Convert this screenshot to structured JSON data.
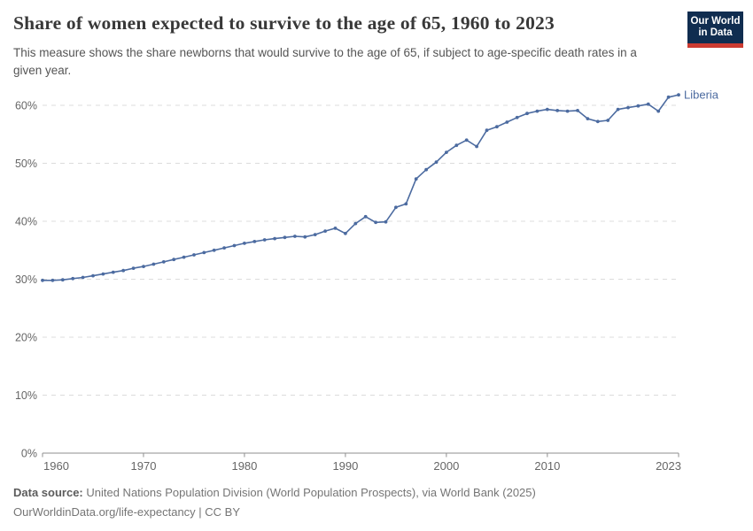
{
  "header": {
    "title": "Share of women expected to survive to the age of 65, 1960 to 2023",
    "subtitle": "This measure shows the share newborns that would survive to the age of 65, if subject to age-specific death rates in a given year."
  },
  "logo": {
    "line1": "Our World",
    "line2": "in Data",
    "bg_color": "#102d50",
    "accent_color": "#cc3b31"
  },
  "chart_data": {
    "type": "line",
    "title": "Share of women expected to survive to the age of 65, 1960 to 2023",
    "xlabel": "",
    "ylabel": "",
    "xlim": [
      1960,
      2023
    ],
    "ylim": [
      0,
      60
    ],
    "grid": "horizontal-dashed",
    "legend_position": "end-of-line-label",
    "yticks": [
      0,
      10,
      20,
      30,
      40,
      50,
      60
    ],
    "ytick_suffix": "%",
    "xticks": [
      1960,
      1970,
      1980,
      1990,
      2000,
      2010,
      2023
    ],
    "axis_color": "#8f8f8f",
    "grid_color": "#dcdcdc",
    "tick_label_color": "#666666",
    "x": [
      1960,
      1961,
      1962,
      1963,
      1964,
      1965,
      1966,
      1967,
      1968,
      1969,
      1970,
      1971,
      1972,
      1973,
      1974,
      1975,
      1976,
      1977,
      1978,
      1979,
      1980,
      1981,
      1982,
      1983,
      1984,
      1985,
      1986,
      1987,
      1988,
      1989,
      1990,
      1991,
      1992,
      1993,
      1994,
      1995,
      1996,
      1997,
      1998,
      1999,
      2000,
      2001,
      2002,
      2003,
      2004,
      2005,
      2006,
      2007,
      2008,
      2009,
      2010,
      2011,
      2012,
      2013,
      2014,
      2015,
      2016,
      2017,
      2018,
      2019,
      2020,
      2021,
      2022,
      2023
    ],
    "series": [
      {
        "name": "Liberia",
        "color": "#4c6ba0",
        "values": [
          29.8,
          29.8,
          29.9,
          30.1,
          30.3,
          30.6,
          30.9,
          31.2,
          31.5,
          31.9,
          32.2,
          32.6,
          33.0,
          33.4,
          33.8,
          34.2,
          34.6,
          35.0,
          35.4,
          35.8,
          36.2,
          36.5,
          36.8,
          37.0,
          37.2,
          37.4,
          37.3,
          37.7,
          38.3,
          38.8,
          37.9,
          39.6,
          40.8,
          39.8,
          39.9,
          42.4,
          43.0,
          47.3,
          48.9,
          50.2,
          51.9,
          53.1,
          54.0,
          52.9,
          55.7,
          56.3,
          57.1,
          57.9,
          58.6,
          59.0,
          59.3,
          59.1,
          59.0,
          59.1,
          57.7,
          57.2,
          57.4,
          59.3,
          59.6,
          59.9,
          60.2,
          59.0,
          61.4,
          61.8
        ]
      }
    ]
  },
  "footer": {
    "source_label": "Data source:",
    "source_text": " United Nations Population Division (World Population Prospects), via World Bank (2025)",
    "link_line": "OurWorldinData.org/life-expectancy | CC BY"
  }
}
